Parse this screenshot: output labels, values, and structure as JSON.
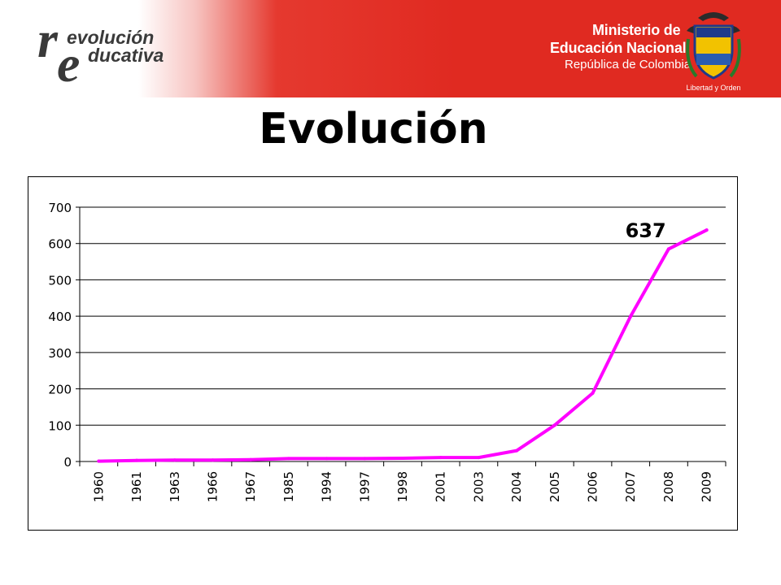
{
  "header": {
    "logo_line1": "evolución",
    "logo_line2": "ducativa",
    "ministry_line1": "Ministerio de",
    "ministry_line2": "Educación Nacional",
    "ministry_line3": "República de Colombia",
    "motto": "Libertad y Orden",
    "colors": {
      "banner_red": "#e02a21"
    },
    "icons": [
      "revolucion-educativa-logo",
      "colombia-coat-of-arms-icon"
    ]
  },
  "title": "Evolución",
  "chart_data": {
    "type": "line",
    "title": "",
    "xlabel": "",
    "ylabel": "",
    "categories": [
      "1960",
      "1961",
      "1963",
      "1966",
      "1967",
      "1985",
      "1994",
      "1997",
      "1998",
      "2001",
      "2003",
      "2004",
      "2005",
      "2006",
      "2007",
      "2008",
      "2009"
    ],
    "series": [
      {
        "values": [
          1,
          3,
          4,
          4,
          5,
          8,
          8,
          8,
          9,
          11,
          11,
          30,
          100,
          188,
          400,
          585,
          637
        ],
        "color": "#ff00ff"
      }
    ],
    "ylim": [
      0,
      700
    ],
    "yticks": [
      "0",
      "100",
      "200",
      "300",
      "400",
      "500",
      "600",
      "700"
    ],
    "grid": true,
    "legend": "none",
    "annotations": [
      {
        "text": "637"
      }
    ]
  }
}
